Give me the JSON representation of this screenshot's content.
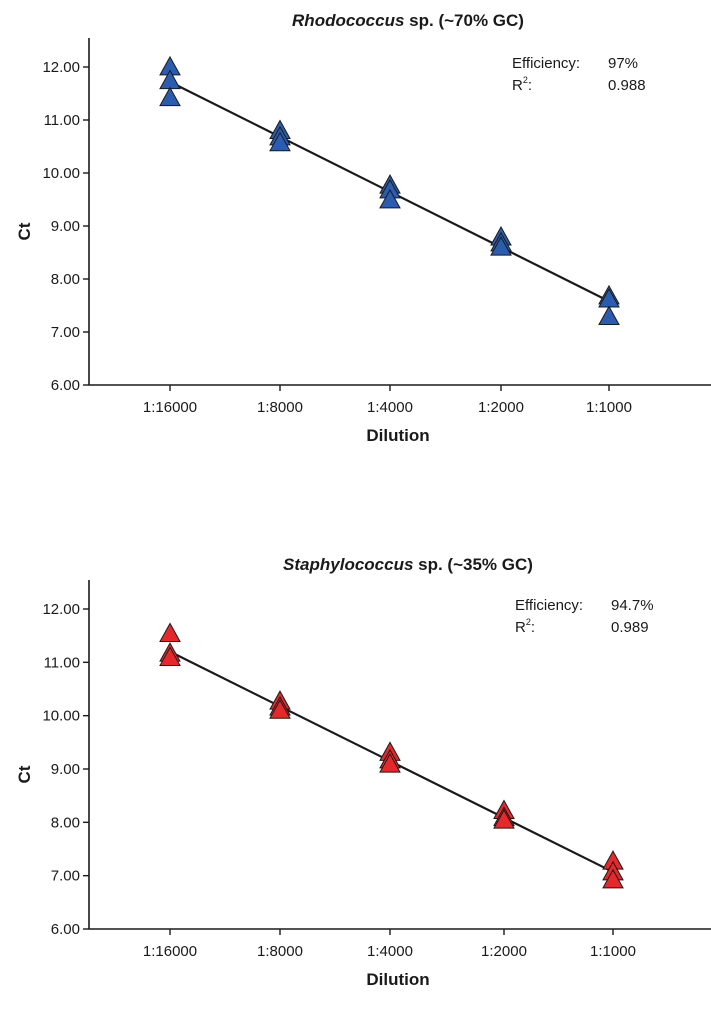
{
  "chart_data": [
    {
      "type": "scatter",
      "title_italic": "Rhodococcus",
      "title_rest": " sp. (~70% GC)",
      "xlabel": "Dilution",
      "ylabel": "Ct",
      "categories": [
        "1:16000",
        "1:8000",
        "1:4000",
        "1:2000",
        "1:1000"
      ],
      "yticks": [
        "6.00",
        "7.00",
        "8.00",
        "9.00",
        "10.00",
        "11.00",
        "12.00"
      ],
      "ylim": [
        6.0,
        12.45
      ],
      "marker": "triangle",
      "color": "#2a5db0",
      "points": [
        {
          "x": "1:16000",
          "y": 11.98
        },
        {
          "x": "1:16000",
          "y": 11.72
        },
        {
          "x": "1:16000",
          "y": 11.4
        },
        {
          "x": "1:8000",
          "y": 10.78
        },
        {
          "x": "1:8000",
          "y": 10.66
        },
        {
          "x": "1:8000",
          "y": 10.55
        },
        {
          "x": "1:4000",
          "y": 9.75
        },
        {
          "x": "1:4000",
          "y": 9.66
        },
        {
          "x": "1:4000",
          "y": 9.47
        },
        {
          "x": "1:2000",
          "y": 8.77
        },
        {
          "x": "1:2000",
          "y": 8.66
        },
        {
          "x": "1:2000",
          "y": 8.58
        },
        {
          "x": "1:1000",
          "y": 7.66
        },
        {
          "x": "1:1000",
          "y": 7.6
        },
        {
          "x": "1:1000",
          "y": 7.27
        }
      ],
      "fit": {
        "y_start": 11.72,
        "y_end": 7.58
      },
      "stats": {
        "efficiency_label": "Efficiency:",
        "efficiency_value": "97%",
        "r2_label_base": "R",
        "r2_label_sup": "2",
        "r2_label_tail": ":",
        "r2_value": "0.988"
      }
    },
    {
      "type": "scatter",
      "title_italic": "Staphylococcus",
      "title_rest": " sp. (~35% GC)",
      "xlabel": "Dilution",
      "ylabel": "Ct",
      "categories": [
        "1:16000",
        "1:8000",
        "1:4000",
        "1:2000",
        "1:1000"
      ],
      "yticks": [
        "6.00",
        "7.00",
        "8.00",
        "9.00",
        "10.00",
        "11.00",
        "12.00"
      ],
      "ylim": [
        6.0,
        12.45
      ],
      "marker": "triangle",
      "color": "#e8272b",
      "points": [
        {
          "x": "1:16000",
          "y": 11.52
        },
        {
          "x": "1:16000",
          "y": 11.15
        },
        {
          "x": "1:16000",
          "y": 11.07
        },
        {
          "x": "1:8000",
          "y": 10.25
        },
        {
          "x": "1:8000",
          "y": 10.14
        },
        {
          "x": "1:8000",
          "y": 10.08
        },
        {
          "x": "1:4000",
          "y": 9.29
        },
        {
          "x": "1:4000",
          "y": 9.15
        },
        {
          "x": "1:4000",
          "y": 9.07
        },
        {
          "x": "1:2000",
          "y": 8.2
        },
        {
          "x": "1:2000",
          "y": 8.07
        },
        {
          "x": "1:2000",
          "y": 8.02
        },
        {
          "x": "1:1000",
          "y": 7.25
        },
        {
          "x": "1:1000",
          "y": 7.05
        },
        {
          "x": "1:1000",
          "y": 6.9
        }
      ],
      "fit": {
        "y_start": 11.2,
        "y_end": 7.07
      },
      "stats": {
        "efficiency_label": "Efficiency:",
        "efficiency_value": "94.7%",
        "r2_label_base": "R",
        "r2_label_sup": "2",
        "r2_label_tail": ":",
        "r2_value": "0.989"
      }
    }
  ]
}
